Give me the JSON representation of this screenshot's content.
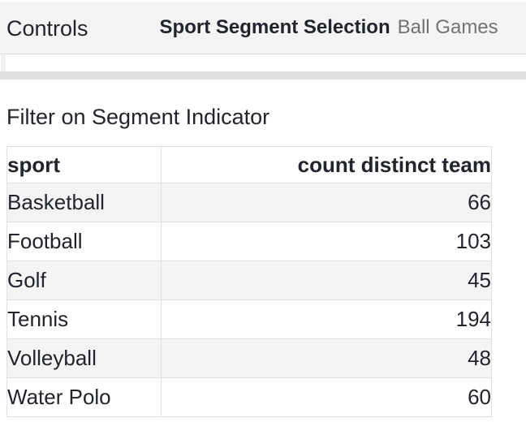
{
  "controls_bar": {
    "label": "Controls",
    "segment_control": {
      "name": "Sport Segment Selection",
      "value": "Ball Games"
    }
  },
  "visual": {
    "title": "Filter on Segment Indicator",
    "table": {
      "columns": [
        "sport",
        "count distinct team"
      ],
      "rows": [
        {
          "sport": "Basketball",
          "count": "66"
        },
        {
          "sport": "Football",
          "count": "103"
        },
        {
          "sport": "Golf",
          "count": "45"
        },
        {
          "sport": "Tennis",
          "count": "194"
        },
        {
          "sport": "Volleyball",
          "count": "48"
        },
        {
          "sport": "Water Polo",
          "count": "60"
        }
      ]
    }
  },
  "colors": {
    "bar_background": "#f4f4f4",
    "row_stripe": "#f4f4f4",
    "table_border": "#e0e0e0",
    "text": "#21252b",
    "muted_text": "#737373",
    "divider_strip": "#e0e0e0"
  }
}
